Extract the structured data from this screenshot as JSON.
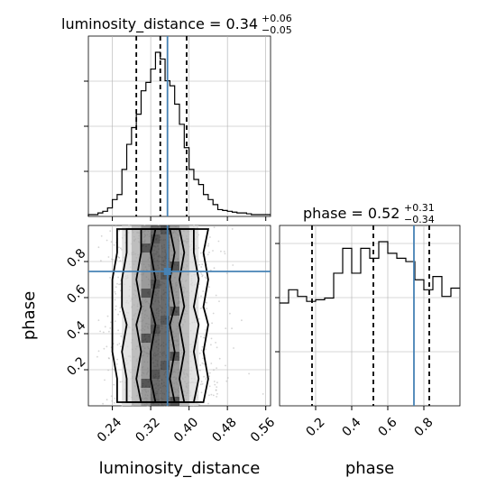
{
  "chart_data": {
    "type": "corner",
    "parameters": [
      "luminosity_distance",
      "phase"
    ],
    "truths": {
      "luminosity_distance": 0.355,
      "phase": 0.745
    },
    "titles": {
      "luminosity_distance": {
        "label": "luminosity_distance = 0.34",
        "plus": "+0.06",
        "minus": "−0.05"
      },
      "phase": {
        "label": "phase = 0.52",
        "plus": "+0.31",
        "minus": "−0.34"
      }
    },
    "luminosity_distance_hist": {
      "xlim": [
        0.19,
        0.57
      ],
      "quantiles": [
        0.29,
        0.34,
        0.395
      ],
      "bin_edges": [
        0.19,
        0.2,
        0.21,
        0.22,
        0.23,
        0.24,
        0.25,
        0.26,
        0.27,
        0.28,
        0.29,
        0.3,
        0.31,
        0.32,
        0.33,
        0.34,
        0.35,
        0.36,
        0.37,
        0.38,
        0.39,
        0.4,
        0.41,
        0.42,
        0.43,
        0.44,
        0.45,
        0.46,
        0.47,
        0.48,
        0.49,
        0.5,
        0.51,
        0.52,
        0.53,
        0.54,
        0.55,
        0.56,
        0.57
      ],
      "counts": [
        0,
        0,
        0.01,
        0.02,
        0.04,
        0.09,
        0.12,
        0.27,
        0.42,
        0.52,
        0.6,
        0.74,
        0.79,
        0.87,
        0.97,
        0.93,
        0.8,
        0.77,
        0.66,
        0.54,
        0.4,
        0.27,
        0.21,
        0.18,
        0.12,
        0.09,
        0.06,
        0.03,
        0.025,
        0.02,
        0.015,
        0.01,
        0.01,
        0.005,
        0,
        0,
        0,
        0
      ]
    },
    "phase_hist": {
      "xlim": [
        0,
        1
      ],
      "quantiles": [
        0.18,
        0.52,
        0.83
      ],
      "bin_edges": [
        0,
        0.05,
        0.1,
        0.15,
        0.2,
        0.25,
        0.3,
        0.35,
        0.4,
        0.45,
        0.5,
        0.55,
        0.6,
        0.65,
        0.7,
        0.75,
        0.8,
        0.85,
        0.9,
        0.95,
        1
      ],
      "counts": [
        0.62,
        0.7,
        0.66,
        0.63,
        0.64,
        0.65,
        0.8,
        0.95,
        0.8,
        0.95,
        0.89,
        0.99,
        0.92,
        0.89,
        0.87,
        0.76,
        0.7,
        0.78,
        0.66,
        0.71
      ]
    },
    "joint": {
      "xlim": [
        0.19,
        0.57
      ],
      "ylim": [
        0,
        1
      ],
      "contour_x": {
        "c1_left": [
          0.33,
          0.32,
          0.32,
          0.33,
          0.32,
          0.33,
          0.32,
          0.33
        ],
        "c1_right": [
          0.37,
          0.36,
          0.37,
          0.36,
          0.37,
          0.36,
          0.37,
          0.36
        ],
        "c2_left": [
          0.3,
          0.29,
          0.3,
          0.29,
          0.3,
          0.29,
          0.3,
          0.3
        ],
        "c2_right": [
          0.39,
          0.38,
          0.39,
          0.38,
          0.39,
          0.38,
          0.39,
          0.38
        ],
        "c3_left": [
          0.27,
          0.27,
          0.26,
          0.27,
          0.26,
          0.26,
          0.27,
          0.27
        ],
        "c3_right": [
          0.41,
          0.42,
          0.41,
          0.42,
          0.41,
          0.42,
          0.41,
          0.41
        ],
        "c4_left": [
          0.25,
          0.25,
          0.24,
          0.24,
          0.24,
          0.24,
          0.25,
          0.25
        ],
        "c4_right": [
          0.43,
          0.44,
          0.43,
          0.44,
          0.43,
          0.44,
          0.43,
          0.44
        ]
      },
      "contour_y": [
        0.02,
        0.15,
        0.3,
        0.45,
        0.55,
        0.7,
        0.85,
        0.98
      ]
    },
    "xticks_ld": [
      "0.24",
      "0.32",
      "0.40",
      "0.48",
      "0.56"
    ],
    "xtick_vals_ld": [
      0.24,
      0.32,
      0.4,
      0.48,
      0.56
    ],
    "yticks_phase": [
      "0.2",
      "0.4",
      "0.6",
      "0.8"
    ],
    "ytick_vals_phase": [
      0.2,
      0.4,
      0.6,
      0.8
    ],
    "xticks_phase": [
      "0.2",
      "0.4",
      "0.6",
      "0.8"
    ],
    "xtick_vals_phase": [
      0.2,
      0.4,
      0.6,
      0.8
    ],
    "xlabel_left": "luminosity_distance",
    "xlabel_right": "phase",
    "ylabel": "phase",
    "colors": {
      "truth": "#4682b4",
      "line": "#000000",
      "grid": "#b0b0b0",
      "scatter": "#b8b8b8"
    }
  }
}
